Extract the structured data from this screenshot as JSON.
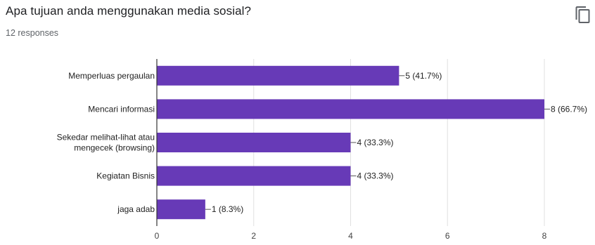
{
  "header": {
    "title": "Apa tujuan anda menggunakan media sosial?",
    "subtitle": "12 responses",
    "copy_icon": "copy-icon"
  },
  "colors": {
    "bar": "#673ab7",
    "grid": "#e0e0e0",
    "axis": "#333333"
  },
  "chart_data": {
    "type": "bar",
    "orientation": "horizontal",
    "categories": [
      [
        "Memperluas pergaulan"
      ],
      [
        "Mencari informasi"
      ],
      [
        "Sekedar melihat-lihat atau",
        "mengecek (browsing)"
      ],
      [
        "Kegiatan Bisnis"
      ],
      [
        "jaga adab"
      ]
    ],
    "values": [
      5,
      8,
      4,
      4,
      1
    ],
    "data_labels": [
      "5 (41.7%)",
      "8 (66.7%)",
      "4 (33.3%)",
      "4 (33.3%)",
      "1 (8.3%)"
    ],
    "xlim": [
      0,
      8
    ],
    "xticks": [
      "0",
      "2",
      "4",
      "6",
      "8"
    ],
    "grid": true
  }
}
